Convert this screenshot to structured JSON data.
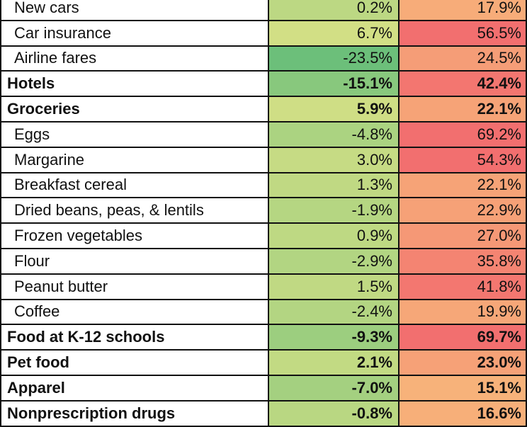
{
  "colors": {
    "green": "#6cbf7a",
    "yellow_green": "#d2df85",
    "light_orange": "#f7b27a",
    "red": "#f26f6f"
  },
  "chart_data": {
    "type": "table",
    "rows": [
      {
        "label": "New cars",
        "bold": false,
        "col1": "0.2%",
        "col2": "17.9%"
      },
      {
        "label": "Car insurance",
        "bold": false,
        "col1": "6.7%",
        "col2": "56.5%"
      },
      {
        "label": "Airline fares",
        "bold": false,
        "col1": "-23.5%",
        "col2": "24.5%"
      },
      {
        "label": "Hotels",
        "bold": true,
        "col1": "-15.1%",
        "col2": "42.4%"
      },
      {
        "label": "Groceries",
        "bold": true,
        "col1": "5.9%",
        "col2": "22.1%"
      },
      {
        "label": "Eggs",
        "bold": false,
        "col1": "-4.8%",
        "col2": "69.2%"
      },
      {
        "label": "Margarine",
        "bold": false,
        "col1": "3.0%",
        "col2": "54.3%"
      },
      {
        "label": "Breakfast cereal",
        "bold": false,
        "col1": "1.3%",
        "col2": "22.1%"
      },
      {
        "label": "Dried beans, peas, & lentils",
        "bold": false,
        "col1": "-1.9%",
        "col2": "22.9%"
      },
      {
        "label": "Frozen vegetables",
        "bold": false,
        "col1": "0.9%",
        "col2": "27.0%"
      },
      {
        "label": "Flour",
        "bold": false,
        "col1": "-2.9%",
        "col2": "35.8%"
      },
      {
        "label": "Peanut butter",
        "bold": false,
        "col1": "1.5%",
        "col2": "41.8%"
      },
      {
        "label": "Coffee",
        "bold": false,
        "col1": "-2.4%",
        "col2": "19.9%"
      },
      {
        "label": "Food at K-12 schools",
        "bold": true,
        "col1": "-9.3%",
        "col2": "69.7%"
      },
      {
        "label": "Pet food",
        "bold": true,
        "col1": "2.1%",
        "col2": "23.0%"
      },
      {
        "label": "Apparel",
        "bold": true,
        "col1": "-7.0%",
        "col2": "15.1%"
      },
      {
        "label": "Nonprescription drugs",
        "bold": true,
        "col1": "-0.8%",
        "col2": "16.6%"
      }
    ]
  }
}
